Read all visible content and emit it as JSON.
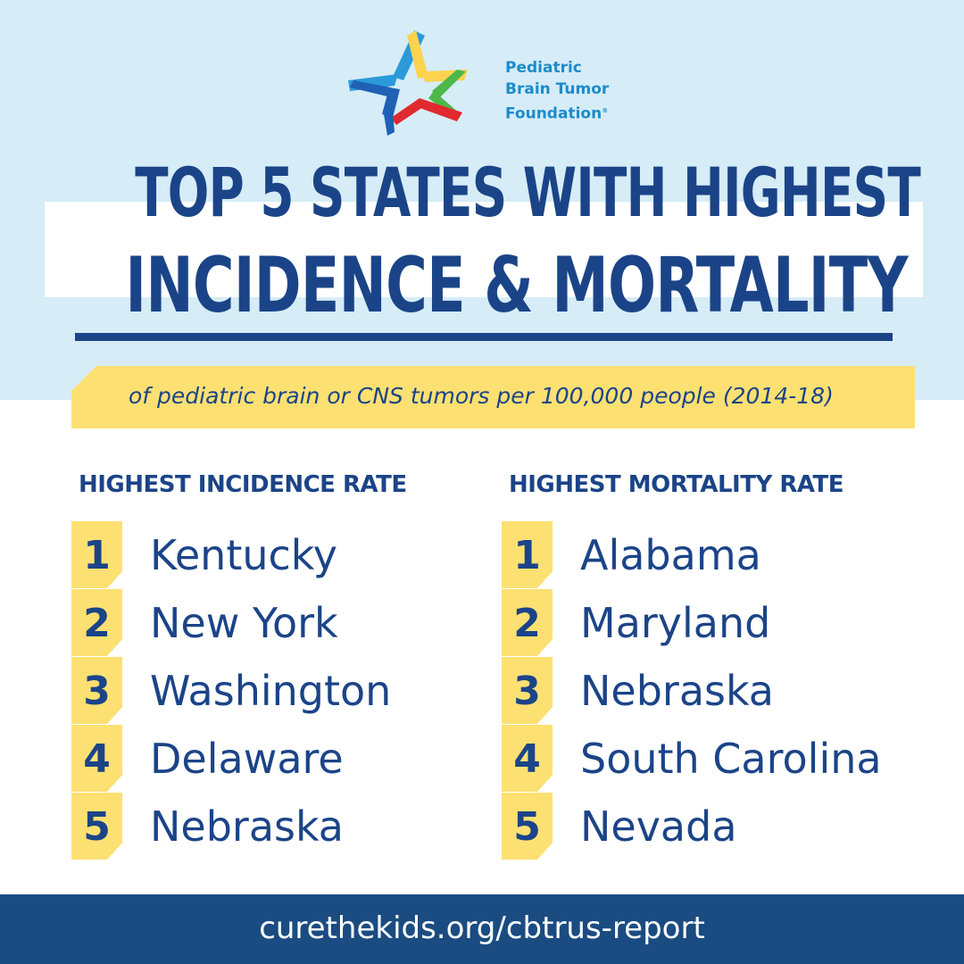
{
  "logo": {
    "line1": "Pediatric",
    "line2": "Brain Tumor",
    "line3": "Foundation",
    "registered": "®",
    "colors": [
      "#2a9ad8",
      "#fcd34d",
      "#4cb848",
      "#e02a2f",
      "#1f61b5"
    ]
  },
  "title": {
    "line1": "TOP 5 STATES WITH HIGHEST",
    "line2": "INCIDENCE & MORTALITY"
  },
  "subtitle": "of pediatric brain or CNS tumors per 100,000 people (2014-18)",
  "incidence": {
    "heading": "HIGHEST INCIDENCE RATE",
    "items": [
      {
        "rank": "1",
        "state": "Kentucky"
      },
      {
        "rank": "2",
        "state": "New York"
      },
      {
        "rank": "3",
        "state": "Washington"
      },
      {
        "rank": "4",
        "state": "Delaware"
      },
      {
        "rank": "5",
        "state": "Nebraska"
      }
    ]
  },
  "mortality": {
    "heading": "HIGHEST MORTALITY RATE",
    "items": [
      {
        "rank": "1",
        "state": "Alabama"
      },
      {
        "rank": "2",
        "state": "Maryland"
      },
      {
        "rank": "3",
        "state": "Nebraska"
      },
      {
        "rank": "4",
        "state": "South Carolina"
      },
      {
        "rank": "5",
        "state": "Nevada"
      }
    ]
  },
  "footer": {
    "url": "curethekids.org/cbtrus-report"
  },
  "colors": {
    "navy": "#1b4488",
    "light_blue_bg": "#d6ecf7",
    "yellow": "#fde072",
    "footer_bg": "#1a4c82",
    "logo_text": "#1a8ccb"
  }
}
